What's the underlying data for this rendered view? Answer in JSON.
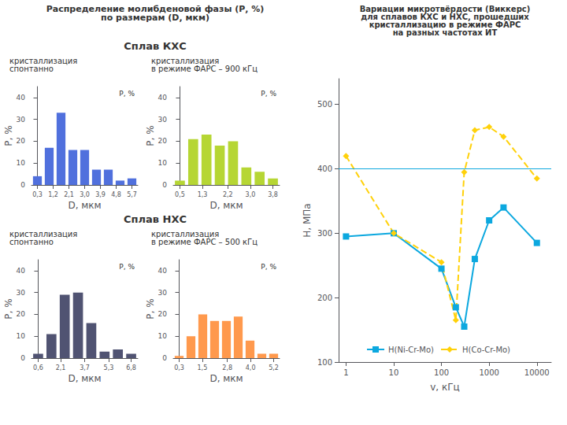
{
  "title": "Распределение молибденовой фазы (Р, %)\nпо размерам (D, мкм)",
  "chart_data": [
    {
      "type": "bar",
      "subtitle": "Сплав КХС",
      "title": "кристаллизация\nспонтанно",
      "categories": [
        null,
        null,
        null,
        null,
        null,
        null,
        null,
        null,
        null
      ],
      "values": [
        4,
        17,
        33,
        16,
        16,
        7,
        7,
        2,
        3
      ],
      "xticks": [
        {
          "value": 0.3,
          "label": "0,3"
        },
        {
          "value": 1.2,
          "label": "1,2"
        },
        {
          "value": 2.1,
          "label": "2,1"
        },
        {
          "value": 3,
          "label": "3,0"
        },
        {
          "value": 3.9,
          "label": "3,9"
        },
        {
          "value": 4.8,
          "label": "4,8"
        },
        {
          "value": 5.7,
          "label": "5,7"
        }
      ],
      "xlabel": "D, мкм",
      "ylabel": "P, %",
      "ylim": [
        0,
        45
      ],
      "yticks": [
        0,
        10,
        20,
        30,
        40
      ],
      "grid": false,
      "annotations": [
        "P, %"
      ]
    },
    {
      "type": "bar",
      "title": "кристаллизация\nв режиме ФАРС – 900 кГц",
      "categories": [
        null,
        null,
        null,
        null,
        null,
        null,
        null,
        null
      ],
      "values": [
        2,
        21,
        23,
        18,
        20,
        8,
        6,
        3
      ],
      "xticks": [
        {
          "value": 0.5,
          "label": "0,5"
        },
        {
          "value": 1.3,
          "label": "1,3"
        },
        {
          "value": 2.2,
          "label": "2,2"
        },
        {
          "value": 3,
          "label": "3,0"
        },
        {
          "value": 3.8,
          "label": "3,8"
        }
      ],
      "xlabel": "D, мкм",
      "ylabel": "P, %",
      "ylim": [
        0,
        45
      ],
      "yticks": [
        0,
        10,
        20,
        30,
        40
      ],
      "grid": false,
      "annotations": [
        "P, %"
      ]
    },
    {
      "type": "bar",
      "subtitle": "Сплав НХС",
      "title": "кристаллизация\nспонтанно",
      "categories": [
        null,
        null,
        null,
        null,
        null,
        null,
        null,
        null
      ],
      "values": [
        2,
        11,
        29,
        30,
        16,
        3,
        4,
        2
      ],
      "xticks": [
        {
          "value": 0.6,
          "label": "0,6"
        },
        {
          "value": 2.1,
          "label": "2,1"
        },
        {
          "value": 3.7,
          "label": "3,7"
        },
        {
          "value": 5.3,
          "label": "5,3"
        },
        {
          "value": 6.8,
          "label": "6,8"
        }
      ],
      "xlabel": "D, мкм",
      "ylabel": "P, %",
      "ylim": [
        0,
        45
      ],
      "yticks": [
        0,
        10,
        20,
        30,
        40
      ],
      "grid": false,
      "annotations": [
        "P, %"
      ]
    },
    {
      "type": "bar",
      "title": "кристаллизация\nв режиме ФАРС – 500 кГц",
      "categories": [
        null,
        null,
        null,
        null,
        null,
        null,
        null,
        null,
        null
      ],
      "values": [
        1,
        10,
        20,
        17,
        17,
        19,
        8,
        2,
        2
      ],
      "xticks": [
        {
          "value": 0.3,
          "label": "0,3"
        },
        {
          "value": 1.5,
          "label": "1,5"
        },
        {
          "value": 2.8,
          "label": "2,8"
        },
        {
          "value": 4,
          "label": "4,0"
        },
        {
          "value": 5.2,
          "label": "5,2"
        }
      ],
      "xlabel": "D, мкм",
      "ylabel": "P, %",
      "ylim": [
        0,
        45
      ],
      "yticks": [
        0,
        10,
        20,
        30,
        40
      ],
      "grid": false,
      "annotations": [
        "P, %"
      ]
    },
    {
      "type": "line",
      "title": "Вариации микротвёрдости (Виккерс)\nдля сплавов КХС и НХС, прошедших\nкристаллизацию в режиме ФАРС\nна разных частотах ИТ",
      "x": [
        1,
        10,
        100,
        200,
        300,
        500,
        1000,
        2000,
        10000
      ],
      "series": [
        {
          "name": "H(Ni-Cr-Mo)",
          "values": [
            295,
            300,
            245,
            185,
            155,
            260,
            320,
            340,
            285
          ],
          "marker": "square",
          "line_style": "solid"
        },
        {
          "name": "H(Co-Cr-Mo)",
          "values": [
            420,
            300,
            255,
            165,
            395,
            460,
            465,
            450,
            385
          ],
          "marker": "diamond",
          "line_style": "dashed"
        }
      ],
      "hline": 400,
      "xlabel": "v, кГц",
      "ylabel": "H, МПа",
      "log": "x",
      "xlim": [
        0.7,
        20000
      ],
      "xticks": [
        1,
        10,
        100,
        1000,
        10000
      ],
      "ylim": [
        100,
        540
      ],
      "yticks": [
        100,
        200,
        300,
        400,
        500
      ],
      "legend": "lower center",
      "grid": false
    }
  ]
}
